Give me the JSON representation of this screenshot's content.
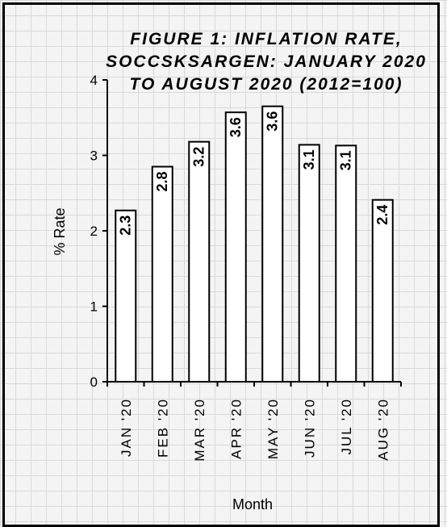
{
  "chart_data": {
    "type": "bar",
    "title": [
      "FIGURE 1: INFLATION RATE,",
      "SOCCSKSARGEN: JANUARY 2020",
      "TO AUGUST 2020 (2012=100)"
    ],
    "xlabel": "Month",
    "ylabel": "% Rate",
    "ylim": [
      0,
      4
    ],
    "yticks": [
      "0",
      "1",
      "2",
      "3",
      "4"
    ],
    "categories": [
      "JAN '20",
      "FEB '20",
      "MAR '20",
      "APR '20",
      "MAY '20",
      "JUN '20",
      "JUL '20",
      "AUG '20"
    ],
    "values": [
      2.27,
      2.85,
      3.18,
      3.57,
      3.65,
      3.14,
      3.13,
      2.41
    ],
    "data_labels": [
      "2.3",
      "2.8",
      "3.2",
      "3.6",
      "3.6",
      "3.1",
      "3.1",
      "2.4"
    ],
    "bar_fill": "#ffffff",
    "bar_stroke": "#000000",
    "grid": false
  }
}
